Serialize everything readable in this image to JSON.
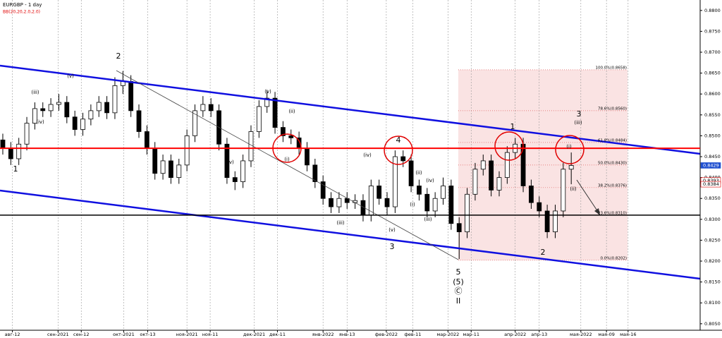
{
  "chart_data": {
    "type": "candlestick",
    "title": "EURGBP - 1 day",
    "subtitle": "BB(20,20,2.0,2.0)",
    "candles": [
      [
        0.849,
        0.8505,
        0.8455,
        0.847
      ],
      [
        0.847,
        0.8485,
        0.843,
        0.8445
      ],
      [
        0.8445,
        0.8495,
        0.843,
        0.848
      ],
      [
        0.848,
        0.8545,
        0.8465,
        0.853
      ],
      [
        0.853,
        0.858,
        0.8515,
        0.8565
      ],
      [
        0.8565,
        0.858,
        0.8545,
        0.856
      ],
      [
        0.856,
        0.859,
        0.8545,
        0.8575
      ],
      [
        0.8575,
        0.86,
        0.856,
        0.858
      ],
      [
        0.858,
        0.8595,
        0.853,
        0.8545
      ],
      [
        0.8545,
        0.856,
        0.85,
        0.8515
      ],
      [
        0.8515,
        0.8555,
        0.85,
        0.854
      ],
      [
        0.854,
        0.8575,
        0.8525,
        0.856
      ],
      [
        0.856,
        0.8595,
        0.8545,
        0.858
      ],
      [
        0.858,
        0.8595,
        0.854,
        0.8555
      ],
      [
        0.8555,
        0.864,
        0.854,
        0.862
      ],
      [
        0.862,
        0.8655,
        0.86,
        0.863
      ],
      [
        0.863,
        0.8645,
        0.8545,
        0.856
      ],
      [
        0.856,
        0.8575,
        0.8495,
        0.851
      ],
      [
        0.851,
        0.8525,
        0.8455,
        0.847
      ],
      [
        0.847,
        0.8485,
        0.8395,
        0.841
      ],
      [
        0.841,
        0.8455,
        0.8395,
        0.844
      ],
      [
        0.844,
        0.8455,
        0.8385,
        0.84
      ],
      [
        0.84,
        0.8445,
        0.8385,
        0.843
      ],
      [
        0.843,
        0.8515,
        0.8415,
        0.85
      ],
      [
        0.85,
        0.8575,
        0.8485,
        0.856
      ],
      [
        0.856,
        0.8595,
        0.8545,
        0.8575
      ],
      [
        0.8575,
        0.859,
        0.8545,
        0.856
      ],
      [
        0.856,
        0.8575,
        0.8465,
        0.848
      ],
      [
        0.848,
        0.8495,
        0.8385,
        0.84
      ],
      [
        0.84,
        0.8415,
        0.837,
        0.839
      ],
      [
        0.839,
        0.8455,
        0.8375,
        0.844
      ],
      [
        0.844,
        0.8525,
        0.8425,
        0.851
      ],
      [
        0.851,
        0.8585,
        0.8495,
        0.857
      ],
      [
        0.857,
        0.861,
        0.8555,
        0.859
      ],
      [
        0.859,
        0.8605,
        0.8505,
        0.852
      ],
      [
        0.852,
        0.8535,
        0.8485,
        0.85
      ],
      [
        0.85,
        0.8515,
        0.848,
        0.8495
      ],
      [
        0.8495,
        0.851,
        0.8455,
        0.847
      ],
      [
        0.847,
        0.8485,
        0.8415,
        0.843
      ],
      [
        0.843,
        0.8445,
        0.8375,
        0.839
      ],
      [
        0.839,
        0.8405,
        0.8335,
        0.835
      ],
      [
        0.835,
        0.8365,
        0.8315,
        0.833
      ],
      [
        0.833,
        0.8365,
        0.8315,
        0.835
      ],
      [
        0.835,
        0.8365,
        0.8325,
        0.834
      ],
      [
        0.834,
        0.836,
        0.8325,
        0.8345
      ],
      [
        0.8345,
        0.836,
        0.8295,
        0.831
      ],
      [
        0.831,
        0.8395,
        0.8295,
        0.838
      ],
      [
        0.838,
        0.8395,
        0.8335,
        0.835
      ],
      [
        0.835,
        0.8365,
        0.831,
        0.833
      ],
      [
        0.833,
        0.8465,
        0.8315,
        0.845
      ],
      [
        0.845,
        0.8465,
        0.8425,
        0.844
      ],
      [
        0.844,
        0.8455,
        0.8365,
        0.838
      ],
      [
        0.838,
        0.8395,
        0.8345,
        0.836
      ],
      [
        0.836,
        0.8375,
        0.8305,
        0.832
      ],
      [
        0.832,
        0.8365,
        0.8305,
        0.835
      ],
      [
        0.835,
        0.84,
        0.8335,
        0.838
      ],
      [
        0.838,
        0.8395,
        0.8275,
        0.829
      ],
      [
        0.829,
        0.8305,
        0.8205,
        0.827
      ],
      [
        0.827,
        0.8375,
        0.8255,
        0.836
      ],
      [
        0.836,
        0.8435,
        0.8345,
        0.842
      ],
      [
        0.842,
        0.8455,
        0.8405,
        0.844
      ],
      [
        0.844,
        0.8455,
        0.8355,
        0.837
      ],
      [
        0.837,
        0.8415,
        0.8355,
        0.84
      ],
      [
        0.84,
        0.8475,
        0.8385,
        0.846
      ],
      [
        0.846,
        0.8495,
        0.8445,
        0.848
      ],
      [
        0.848,
        0.8495,
        0.8365,
        0.838
      ],
      [
        0.838,
        0.8395,
        0.8325,
        0.834
      ],
      [
        0.834,
        0.8355,
        0.8305,
        0.832
      ],
      [
        0.832,
        0.8335,
        0.8255,
        0.827
      ],
      [
        0.827,
        0.8335,
        0.8255,
        0.832
      ],
      [
        0.832,
        0.8435,
        0.8305,
        0.842
      ],
      [
        0.842,
        0.846,
        0.8384,
        0.8429
      ]
    ],
    "xlim": [
      -0.35,
      87.1
    ],
    "xticks": [
      {
        "value": 1.2,
        "label": "авг-12"
      },
      {
        "value": 6.9,
        "label": "сен-2021"
      },
      {
        "value": 9.8,
        "label": "сен-12"
      },
      {
        "value": 15.1,
        "label": "окт-2021"
      },
      {
        "value": 18.1,
        "label": "окт-13"
      },
      {
        "value": 23,
        "label": "ноя-2021"
      },
      {
        "value": 25.9,
        "label": "ноя-11"
      },
      {
        "value": 31.4,
        "label": "дек-2021"
      },
      {
        "value": 34.3,
        "label": "дек-11"
      },
      {
        "value": 40,
        "label": "янв-2022"
      },
      {
        "value": 43,
        "label": "янв-13"
      },
      {
        "value": 47.9,
        "label": "фев-2022"
      },
      {
        "value": 51.2,
        "label": "фев-11"
      },
      {
        "value": 55.6,
        "label": "мар-2022"
      },
      {
        "value": 58.5,
        "label": "мар-11"
      },
      {
        "value": 64,
        "label": "апр-2022"
      },
      {
        "value": 67,
        "label": "апр-13"
      },
      {
        "value": 72.2,
        "label": "мая-2022"
      },
      {
        "value": 75.4,
        "label": "мая-09"
      },
      {
        "value": 78.1,
        "label": "мая-16"
      }
    ],
    "ylim": [
      0.80345,
      0.8825
    ],
    "yticks": [
      {
        "value": 0.805,
        "label": "0.8050"
      },
      {
        "value": 0.81,
        "label": "0.8100"
      },
      {
        "value": 0.815,
        "label": "0.8150"
      },
      {
        "value": 0.82,
        "label": "0.8200"
      },
      {
        "value": 0.825,
        "label": "0.8250"
      },
      {
        "value": 0.83,
        "label": "0.8300"
      },
      {
        "value": 0.835,
        "label": "0.8350"
      },
      {
        "value": 0.84,
        "label": "0.8400"
      },
      {
        "value": 0.845,
        "label": "0.8450"
      },
      {
        "value": 0.85,
        "label": "0.8500"
      },
      {
        "value": 0.855,
        "label": "0.8550"
      },
      {
        "value": 0.86,
        "label": "0.8600"
      },
      {
        "value": 0.865,
        "label": "0.8650"
      },
      {
        "value": 0.87,
        "label": "0.8700"
      },
      {
        "value": 0.875,
        "label": "0.8750"
      },
      {
        "value": 0.88,
        "label": "0.8800"
      }
    ],
    "grid": true,
    "levels": [
      {
        "value": 0.847,
        "color": "#ff0000"
      },
      {
        "value": 0.831,
        "color": "#000000"
      }
    ],
    "fib_levels": [
      {
        "value": 0.8658,
        "label": "100.0%(0.8658)"
      },
      {
        "value": 0.856,
        "label": "78.6%(0.8560)"
      },
      {
        "value": 0.8484,
        "label": "61.8%(0.8484)"
      },
      {
        "value": 0.843,
        "label": "50.0%(0.8430)"
      },
      {
        "value": 0.8376,
        "label": "38.2%(0.8376)"
      },
      {
        "value": 0.831,
        "label": "23.6%(0.8310)"
      },
      {
        "value": 0.8202,
        "label": "0.0%(0.8202)"
      }
    ],
    "price_tags": [
      0.8429,
      0.8393,
      0.8384
    ],
    "annotations": [
      "2",
      "1",
      "4",
      "3",
      "5",
      "(5)",
      "Ⓒ",
      "II",
      "1",
      "2",
      "3",
      "(v)",
      "(iii)",
      "(iv)",
      "(iv)",
      "(v)",
      "(ii)",
      "(i)",
      "(iv)",
      "(iii)",
      "(v)",
      "(i)",
      "(ii)",
      "(iv)",
      "(iii)",
      "(i)",
      "(ii)",
      "(iii)"
    ]
  }
}
